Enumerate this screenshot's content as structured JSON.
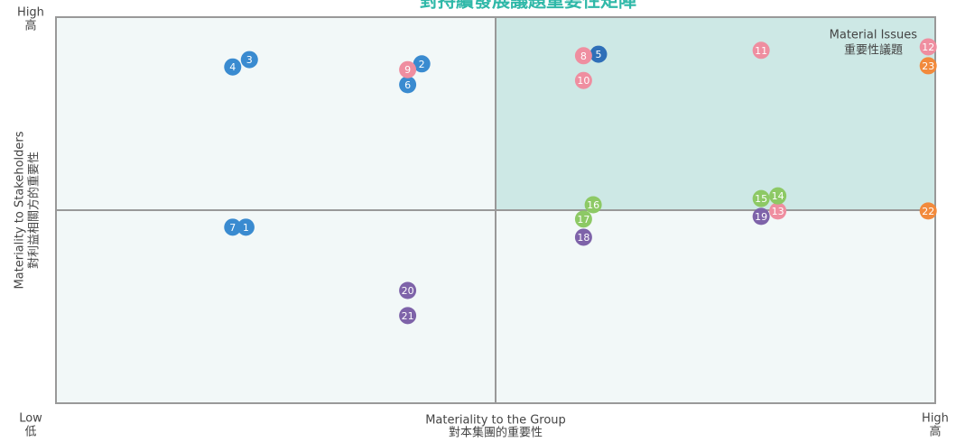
{
  "chart_data": {
    "type": "scatter",
    "title": "對持續發展議題重要性矩陣",
    "x_label": [
      "Materiality to the Group",
      "對本集團的重要性"
    ],
    "y_label": [
      "Materiality to Stakeholders",
      "對利益相關方的重要性"
    ],
    "corner_labels": {
      "y_high": [
        "High",
        "高"
      ],
      "low": [
        "Low",
        "低"
      ],
      "x_high": [
        "High",
        "高"
      ]
    },
    "annotation": [
      "Material Issues",
      "重要性議題"
    ],
    "xlim": [
      0,
      10
    ],
    "ylim": [
      0,
      10
    ],
    "points": [
      {
        "label": "1",
        "x": 2.16,
        "y": 4.56,
        "color": "#3a8bd0"
      },
      {
        "label": "2",
        "x": 4.16,
        "y": 8.79,
        "color": "#3a8bd0"
      },
      {
        "label": "3",
        "x": 2.2,
        "y": 8.9,
        "color": "#3a8bd0"
      },
      {
        "label": "4",
        "x": 2.01,
        "y": 8.71,
        "color": "#3a8bd0"
      },
      {
        "label": "5",
        "x": 6.17,
        "y": 9.04,
        "color": "#2f6fb8"
      },
      {
        "label": "6",
        "x": 4.0,
        "y": 8.25,
        "color": "#3a8bd0"
      },
      {
        "label": "7",
        "x": 2.01,
        "y": 4.56,
        "color": "#3a8bd0"
      },
      {
        "label": "8",
        "x": 6.0,
        "y": 9.0,
        "color": "#ef8ea0"
      },
      {
        "label": "9",
        "x": 4.0,
        "y": 8.64,
        "color": "#ef8ea0"
      },
      {
        "label": "10",
        "x": 6.0,
        "y": 8.36,
        "color": "#ef8ea0"
      },
      {
        "label": "11",
        "x": 8.02,
        "y": 9.14,
        "color": "#ef8ea0"
      },
      {
        "label": "12",
        "x": 9.92,
        "y": 9.23,
        "color": "#ef8ea0"
      },
      {
        "label": "13",
        "x": 8.21,
        "y": 4.98,
        "color": "#ef8ea0"
      },
      {
        "label": "14",
        "x": 8.21,
        "y": 5.37,
        "color": "#8dc965"
      },
      {
        "label": "15",
        "x": 8.02,
        "y": 5.3,
        "color": "#8dc965"
      },
      {
        "label": "16",
        "x": 6.11,
        "y": 5.14,
        "color": "#8dc965"
      },
      {
        "label": "17",
        "x": 6.0,
        "y": 4.77,
        "color": "#8dc965"
      },
      {
        "label": "18",
        "x": 6.0,
        "y": 4.3,
        "color": "#7e63a9"
      },
      {
        "label": "19",
        "x": 8.02,
        "y": 4.84,
        "color": "#7e63a9"
      },
      {
        "label": "20",
        "x": 4.0,
        "y": 2.92,
        "color": "#7e63a9"
      },
      {
        "label": "21",
        "x": 4.0,
        "y": 2.27,
        "color": "#7e63a9"
      },
      {
        "label": "22",
        "x": 9.92,
        "y": 4.98,
        "color": "#f28a3c"
      },
      {
        "label": "23",
        "x": 9.92,
        "y": 8.74,
        "color": "#f28a3c"
      }
    ]
  }
}
